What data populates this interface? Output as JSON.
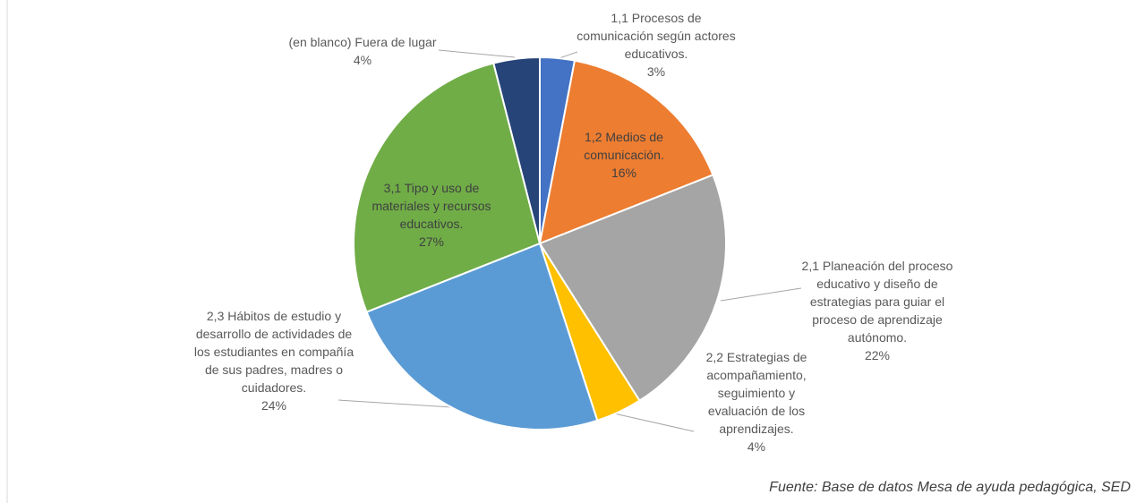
{
  "chart_data": {
    "type": "pie",
    "categories": [
      "1,1 Procesos de comunicación según actores educativos.",
      "1,2 Medios de comunicación.",
      "2,1 Planeación del proceso educativo y diseño de estrategias para guiar el proceso de aprendizaje autónomo.",
      "2,2 Estrategias de acompañamiento, seguimiento y evaluación de los aprendizajes.",
      "2,3 Hábitos de estudio y desarrollo de actividades de los estudiantes en compañía de sus padres, madres o cuidadores.",
      "3,1 Tipo y uso de materiales y recursos educativos.",
      "(en blanco) Fuera de lugar"
    ],
    "values": [
      3,
      16,
      22,
      4,
      24,
      27,
      4
    ],
    "value_labels": [
      "3%",
      "16%",
      "22%",
      "4%",
      "24%",
      "27%",
      "4%"
    ],
    "colors": [
      "#4472c4",
      "#ed7d31",
      "#a5a5a5",
      "#ffc000",
      "#5b9bd5",
      "#70ad47",
      "#264478"
    ],
    "source": "Fuente: Base de datos Mesa de ayuda pedagógica, SED"
  }
}
